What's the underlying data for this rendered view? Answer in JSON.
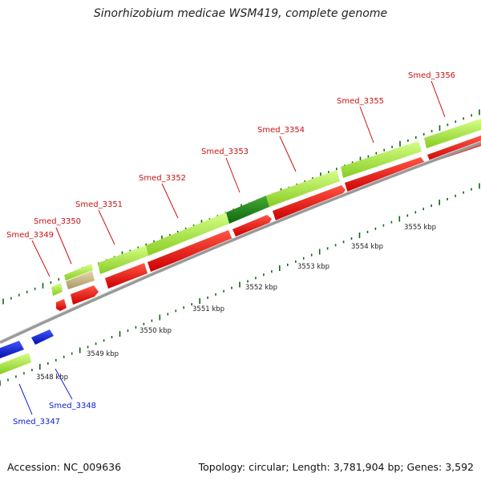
{
  "title": "Sinorhizobium medicae WSM419, complete genome",
  "footer": {
    "accession": "Accession: NC_009636",
    "summary": "Topology: circular; Length: 3,781,904 bp; Genes: 3,592"
  },
  "colors": {
    "forward_gene": "#aaee44",
    "forward_gene_alt_dark": "#228822",
    "forward_gene_alt_tan": "#c8b888",
    "reverse_gene": "#ee1111",
    "blue_gene": "#1122dd",
    "backbone": "#888888",
    "tick": "#116611",
    "label_red": "#cc1111",
    "label_blue": "#1122cc"
  },
  "scale_labels": [
    "3548 kbp",
    "3549 kbp",
    "3550 kbp",
    "3551 kbp",
    "3552 kbp",
    "3553 kbp",
    "3554 kbp",
    "3555 kbp"
  ],
  "gene_labels": [
    {
      "text": "Smed_3347",
      "color": "blue"
    },
    {
      "text": "Smed_3348",
      "color": "blue"
    },
    {
      "text": "Smed_3349",
      "color": "red"
    },
    {
      "text": "Smed_3350",
      "color": "red"
    },
    {
      "text": "Smed_3351",
      "color": "red"
    },
    {
      "text": "Smed_3352",
      "color": "red"
    },
    {
      "text": "Smed_3353",
      "color": "red"
    },
    {
      "text": "Smed_3354",
      "color": "red"
    },
    {
      "text": "Smed_3355",
      "color": "red"
    },
    {
      "text": "Smed_3356",
      "color": "red"
    }
  ]
}
